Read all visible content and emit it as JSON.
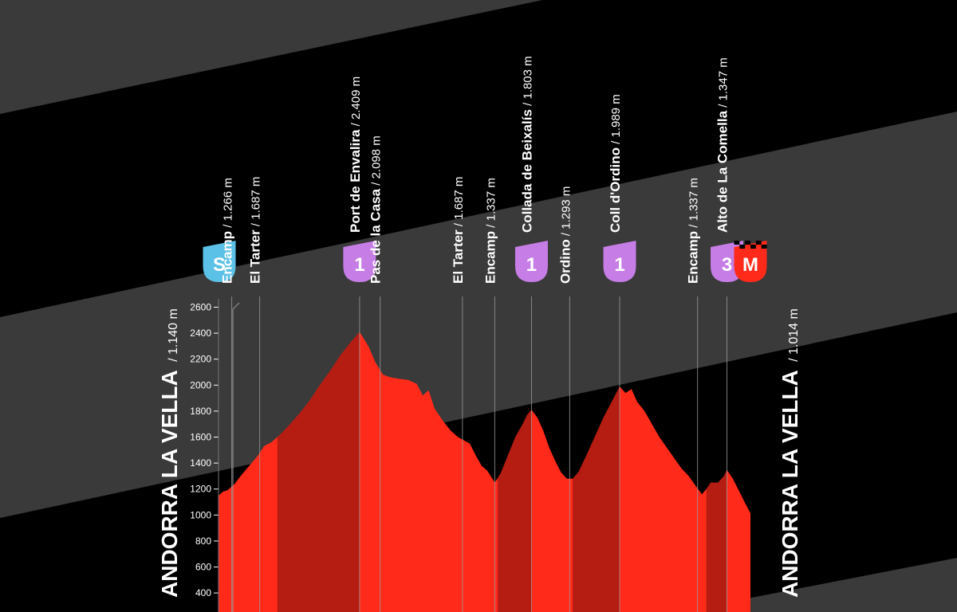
{
  "colors": {
    "background": "#000000",
    "band": "#3a3a3a",
    "profile_fill": "#ff2a1a",
    "profile_dark": "#a81a12",
    "climb_badge": "#c67de6",
    "start_badge": "#5cc1e6",
    "finish_badge": "#ff2a1a",
    "guide_line": "#9a9a9a"
  },
  "start": {
    "name": "ANDORRA LA VELLA",
    "altitude": "/ 1.140 m",
    "badge": "S"
  },
  "finish": {
    "name": "ANDORRA LA VELLA",
    "altitude": "/ 1.014 m",
    "badge": "M"
  },
  "waypoints": [
    {
      "name": "Encamp",
      "altitude": " / 1.266 m",
      "badge": ""
    },
    {
      "name": "El Tarter",
      "altitude": " / 1.687 m",
      "badge": ""
    },
    {
      "name": "Port de Envalira",
      "altitude": " / 2.409 m",
      "badge": "1"
    },
    {
      "name": "Pas de la Casa",
      "altitude": " / 2.098 m",
      "badge": ""
    },
    {
      "name": "El Tarter",
      "altitude": " / 1.687 m",
      "badge": ""
    },
    {
      "name": "Encamp",
      "altitude": " / 1.337 m",
      "badge": ""
    },
    {
      "name": "Collada de Beixalís",
      "altitude": " / 1.803 m",
      "badge": "1"
    },
    {
      "name": "Ordino",
      "altitude": " / 1.293 m",
      "badge": ""
    },
    {
      "name": "Coll d'Ordino",
      "altitude": " / 1.989 m",
      "badge": "1"
    },
    {
      "name": "Encamp",
      "altitude": " / 1.337 m",
      "badge": ""
    },
    {
      "name": "Alto de La Comella",
      "altitude": " / 1.347 m",
      "badge": "3"
    }
  ],
  "chart_data": {
    "type": "area",
    "y_unit": "m",
    "ylim": [
      300,
      2700
    ],
    "yticks": [
      "2600",
      "2400",
      "2200",
      "2000",
      "1800",
      "1600",
      "1400",
      "1200",
      "1000",
      "800",
      "600",
      "400"
    ],
    "elevation_profile": [
      [
        0,
        1150
      ],
      [
        0.6,
        1180
      ],
      [
        1.2,
        1190
      ],
      [
        2.2,
        1240
      ],
      [
        3.0,
        1300
      ],
      [
        4.2,
        1380
      ],
      [
        5.4,
        1460
      ],
      [
        6.2,
        1530
      ],
      [
        7.2,
        1560
      ],
      [
        8.4,
        1620
      ],
      [
        9.6,
        1690
      ],
      [
        11.0,
        1780
      ],
      [
        12.4,
        1880
      ],
      [
        13.8,
        2000
      ],
      [
        15.2,
        2110
      ],
      [
        16.6,
        2230
      ],
      [
        18.0,
        2330
      ],
      [
        19.2,
        2410
      ],
      [
        20.4,
        2300
      ],
      [
        21.4,
        2170
      ],
      [
        22.4,
        2080
      ],
      [
        23.4,
        2060
      ],
      [
        24.4,
        2050
      ],
      [
        25.8,
        2040
      ],
      [
        27.0,
        2010
      ],
      [
        27.8,
        1920
      ],
      [
        28.6,
        1960
      ],
      [
        29.4,
        1820
      ],
      [
        30.6,
        1720
      ],
      [
        31.6,
        1650
      ],
      [
        32.6,
        1600
      ],
      [
        34.2,
        1550
      ],
      [
        35.0,
        1460
      ],
      [
        35.8,
        1380
      ],
      [
        36.6,
        1340
      ],
      [
        37.6,
        1250
      ],
      [
        38.4,
        1320
      ],
      [
        39.4,
        1460
      ],
      [
        40.4,
        1600
      ],
      [
        41.4,
        1700
      ],
      [
        42.0,
        1770
      ],
      [
        42.6,
        1810
      ],
      [
        43.4,
        1750
      ],
      [
        44.2,
        1650
      ],
      [
        45.0,
        1520
      ],
      [
        45.8,
        1420
      ],
      [
        46.6,
        1330
      ],
      [
        47.4,
        1280
      ],
      [
        48.2,
        1280
      ],
      [
        49.0,
        1330
      ],
      [
        50.0,
        1450
      ],
      [
        51.2,
        1600
      ],
      [
        52.4,
        1750
      ],
      [
        53.6,
        1880
      ],
      [
        54.6,
        1989
      ],
      [
        55.4,
        1940
      ],
      [
        56.2,
        1970
      ],
      [
        57.0,
        1870
      ],
      [
        58.0,
        1800
      ],
      [
        59.0,
        1700
      ],
      [
        60.0,
        1600
      ],
      [
        61.0,
        1520
      ],
      [
        62.0,
        1440
      ],
      [
        63.0,
        1360
      ],
      [
        64.0,
        1300
      ],
      [
        65.0,
        1220
      ],
      [
        65.8,
        1160
      ],
      [
        66.4,
        1200
      ],
      [
        67.0,
        1250
      ],
      [
        68.0,
        1250
      ],
      [
        68.8,
        1300
      ],
      [
        69.2,
        1347
      ],
      [
        70.0,
        1280
      ],
      [
        70.8,
        1190
      ],
      [
        71.6,
        1100
      ],
      [
        72.4,
        1014
      ]
    ],
    "waypoint_km": [
      1.8,
      5.6,
      19.2,
      22.0,
      33.2,
      37.6,
      42.6,
      47.8,
      54.6,
      65.2,
      69.2
    ],
    "start_km": 0.6,
    "finish_km": 72.4,
    "shaded_climbs": [
      [
        8.0,
        19.2
      ],
      [
        38.0,
        42.6
      ],
      [
        48.2,
        54.6
      ],
      [
        66.4,
        69.2
      ]
    ]
  }
}
